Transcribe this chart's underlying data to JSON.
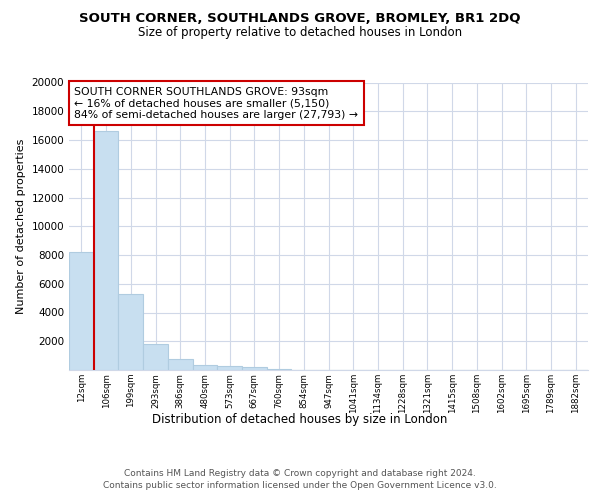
{
  "title": "SOUTH CORNER, SOUTHLANDS GROVE, BROMLEY, BR1 2DQ",
  "subtitle": "Size of property relative to detached houses in London",
  "xlabel": "Distribution of detached houses by size in London",
  "ylabel": "Number of detached properties",
  "bar_values": [
    8200,
    16600,
    5300,
    1800,
    800,
    350,
    250,
    200,
    100,
    0,
    0,
    0,
    0,
    0,
    0,
    0,
    0,
    0,
    0,
    0,
    0
  ],
  "bar_labels": [
    "12sqm",
    "106sqm",
    "199sqm",
    "293sqm",
    "386sqm",
    "480sqm",
    "573sqm",
    "667sqm",
    "760sqm",
    "854sqm",
    "947sqm",
    "1041sqm",
    "1134sqm",
    "1228sqm",
    "1321sqm",
    "1415sqm",
    "1508sqm",
    "1602sqm",
    "1695sqm",
    "1789sqm",
    "1882sqm"
  ],
  "bar_color": "#c8dff0",
  "bar_edge_color": "#b0cce0",
  "property_line_color": "#cc0000",
  "annotation_line1": "SOUTH CORNER SOUTHLANDS GROVE: 93sqm",
  "annotation_line2": "← 16% of detached houses are smaller (5,150)",
  "annotation_line3": "84% of semi-detached houses are larger (27,793) →",
  "ylim": [
    0,
    20000
  ],
  "yticks": [
    0,
    2000,
    4000,
    6000,
    8000,
    10000,
    12000,
    14000,
    16000,
    18000,
    20000
  ],
  "footer1": "Contains HM Land Registry data © Crown copyright and database right 2024.",
  "footer2": "Contains public sector information licensed under the Open Government Licence v3.0.",
  "bg_color": "#ffffff",
  "grid_color": "#d0d8e8"
}
